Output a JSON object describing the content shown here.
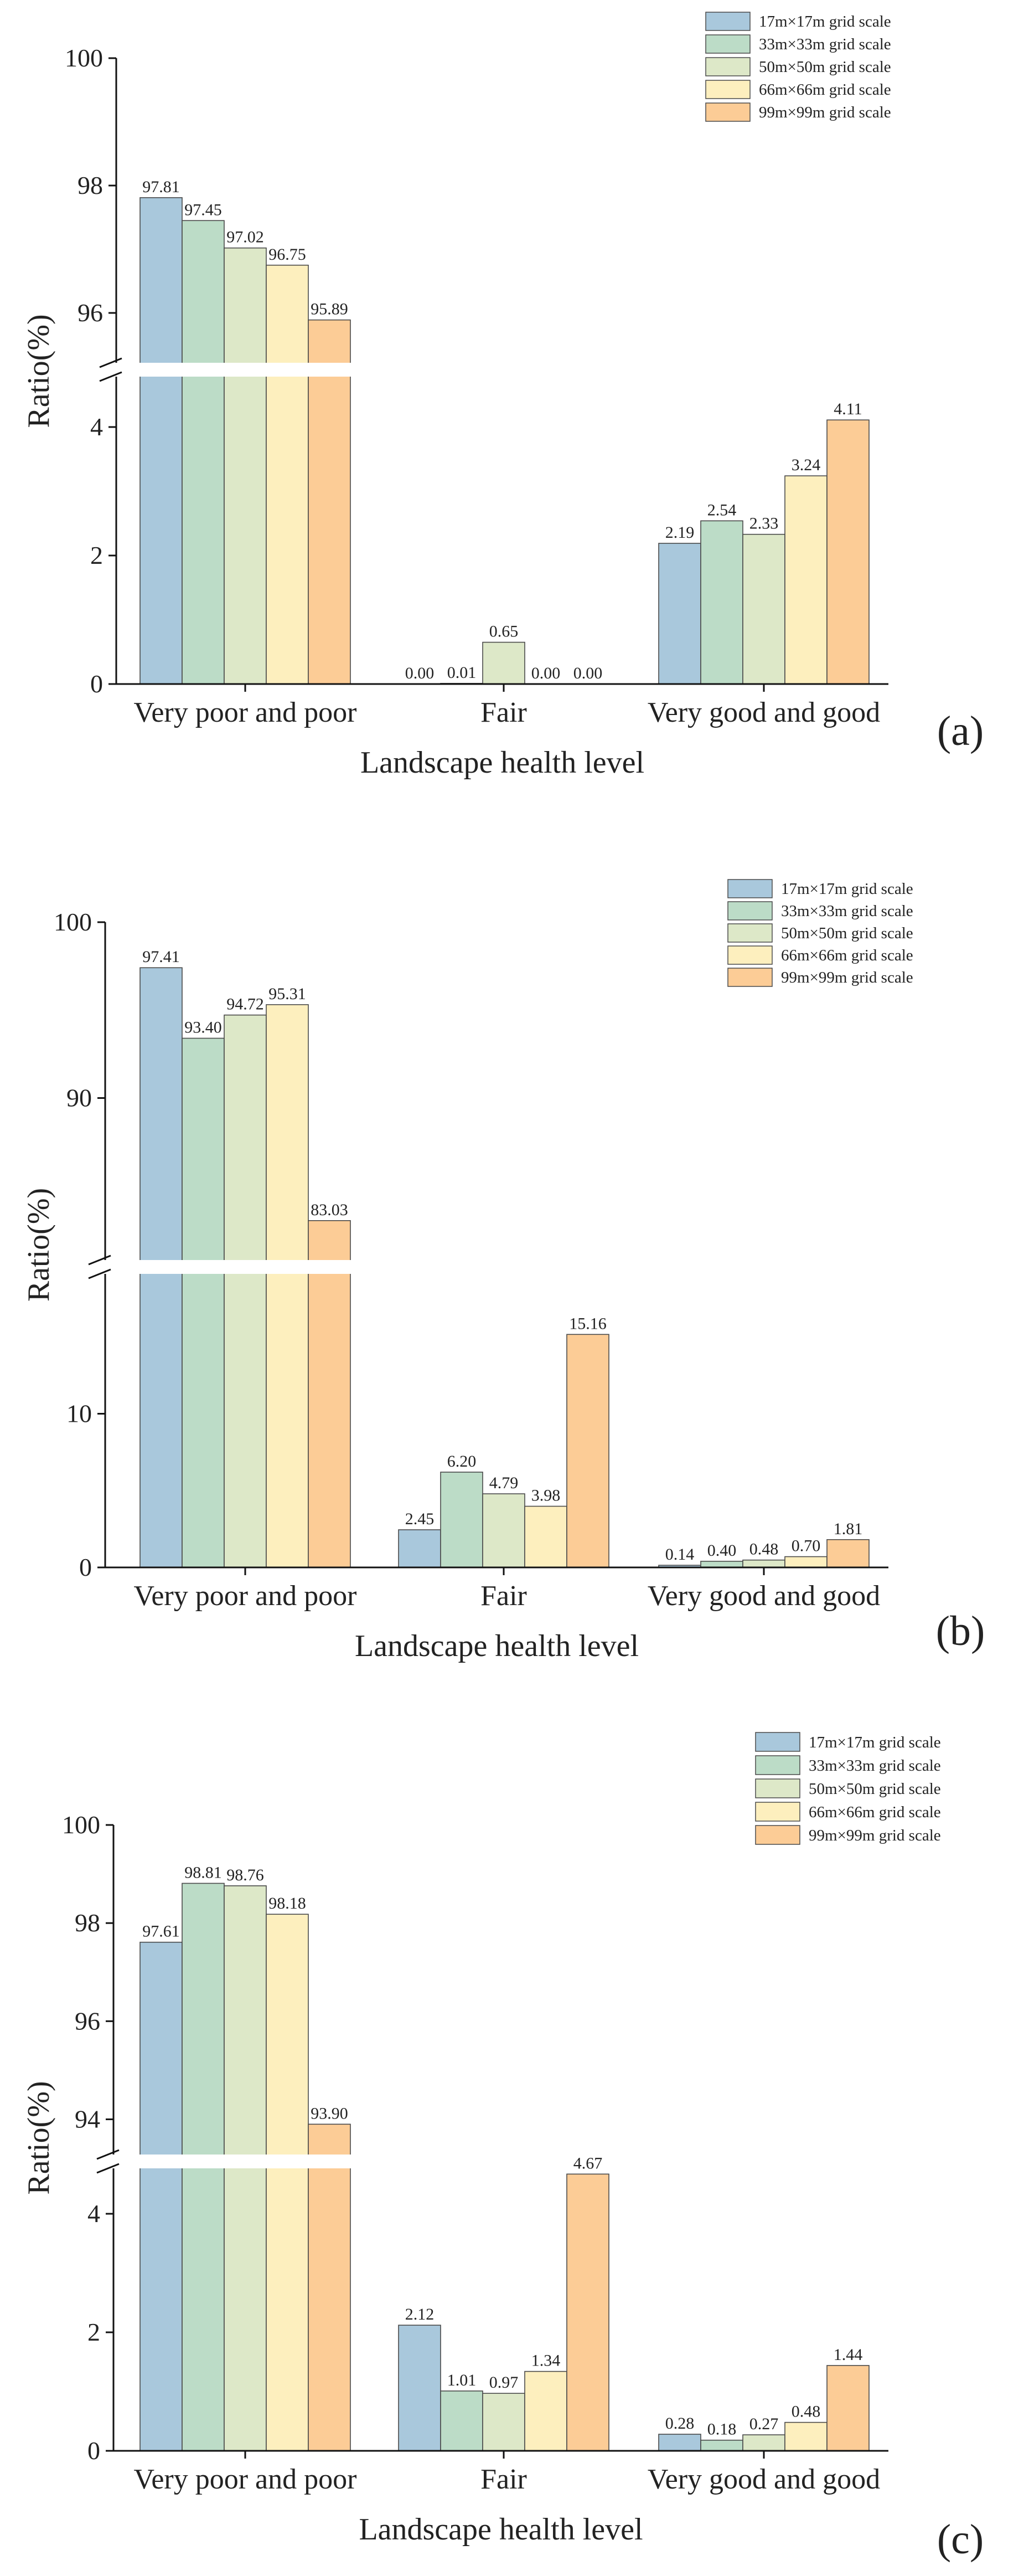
{
  "colors": [
    "#a9c8dc",
    "#bcdcc7",
    "#dde8c8",
    "#fdefbe",
    "#fccc96"
  ],
  "legend": [
    "17m×17m grid scale",
    "33m×33m grid scale",
    "50m×50m grid scale",
    "66m×66m grid scale",
    "99m×99m grid scale"
  ],
  "chart_data": [
    {
      "type": "bar",
      "panel_label": "(a)",
      "xlabel": "Landscape health level",
      "ylabel": "Ratio(%)",
      "categories": [
        "Very poor and poor",
        "Fair",
        "Very good and good"
      ],
      "y_break": {
        "lower_range": [
          0,
          5
        ],
        "upper_range": [
          95,
          100
        ]
      },
      "y_ticks_lower": [
        "0",
        "2",
        "4"
      ],
      "y_ticks_upper": [
        "96",
        "98",
        "100"
      ],
      "series": [
        {
          "name": "17m×17m grid scale",
          "values": [
            97.81,
            0.0,
            2.19
          ],
          "labels": [
            "97.81",
            "0.00",
            "2.19"
          ]
        },
        {
          "name": "33m×33m grid scale",
          "values": [
            97.45,
            0.01,
            2.54
          ],
          "labels": [
            "97.45",
            "0.01",
            "2.54"
          ]
        },
        {
          "name": "50m×50m grid scale",
          "values": [
            97.02,
            0.65,
            2.33
          ],
          "labels": [
            "97.02",
            "0.65",
            "2.33"
          ]
        },
        {
          "name": "66m×66m grid scale",
          "values": [
            96.75,
            0.0,
            3.24
          ],
          "labels": [
            "96.75",
            "0.00",
            "3.24"
          ]
        },
        {
          "name": "99m×99m grid scale",
          "values": [
            95.89,
            0.0,
            4.11
          ],
          "labels": [
            "95.89",
            "0.00",
            "4.11"
          ]
        }
      ]
    },
    {
      "type": "bar",
      "panel_label": "(b)",
      "xlabel": "Landscape health level",
      "ylabel": "Ratio(%)",
      "categories": [
        "Very poor and poor",
        "Fair",
        "Very good and good"
      ],
      "y_break": {
        "lower_range": [
          0,
          20
        ],
        "upper_range": [
          80,
          100
        ]
      },
      "y_ticks_lower": [
        "0",
        "10"
      ],
      "y_ticks_upper": [
        "90",
        "100"
      ],
      "series": [
        {
          "name": "17m×17m grid scale",
          "values": [
            97.41,
            2.45,
            0.14
          ],
          "labels": [
            "97.41",
            "2.45",
            "0.14"
          ]
        },
        {
          "name": "33m×33m grid scale",
          "values": [
            93.4,
            6.2,
            0.4
          ],
          "labels": [
            "93.40",
            "6.20",
            "0.40"
          ]
        },
        {
          "name": "50m×50m grid scale",
          "values": [
            94.72,
            4.79,
            0.48
          ],
          "labels": [
            "94.72",
            "4.79",
            "0.48"
          ]
        },
        {
          "name": "66m×66m grid scale",
          "values": [
            95.31,
            3.98,
            0.7
          ],
          "labels": [
            "95.31",
            "3.98",
            "0.70"
          ]
        },
        {
          "name": "99m×99m grid scale",
          "values": [
            83.03,
            15.16,
            1.81
          ],
          "labels": [
            "83.03",
            "15.16",
            "1.81"
          ]
        }
      ]
    },
    {
      "type": "bar",
      "panel_label": "(c)",
      "xlabel": "Landscape health level",
      "ylabel": "Ratio(%)",
      "categories": [
        "Very poor and poor",
        "Fair",
        "Very good and good"
      ],
      "y_break": {
        "lower_range": [
          0,
          5
        ],
        "upper_range": [
          93,
          100
        ]
      },
      "y_ticks_lower": [
        "0",
        "2",
        "4"
      ],
      "y_ticks_upper": [
        "94",
        "96",
        "98",
        "100"
      ],
      "series": [
        {
          "name": "17m×17m grid scale",
          "values": [
            97.61,
            2.12,
            0.28
          ],
          "labels": [
            "97.61",
            "2.12",
            "0.28"
          ]
        },
        {
          "name": "33m×33m grid scale",
          "values": [
            98.81,
            1.01,
            0.18
          ],
          "labels": [
            "98.81",
            "1.01",
            "0.18"
          ]
        },
        {
          "name": "50m×50m grid scale",
          "values": [
            98.76,
            0.97,
            0.27
          ],
          "labels": [
            "98.76",
            "0.97",
            "0.27"
          ]
        },
        {
          "name": "66m×66m grid scale",
          "values": [
            98.18,
            1.34,
            0.48
          ],
          "labels": [
            "98.18",
            "1.34",
            "0.48"
          ]
        },
        {
          "name": "99m×99m grid scale",
          "values": [
            93.9,
            4.67,
            1.44
          ],
          "labels": [
            "93.90",
            "4.67",
            "1.44"
          ]
        }
      ]
    }
  ]
}
